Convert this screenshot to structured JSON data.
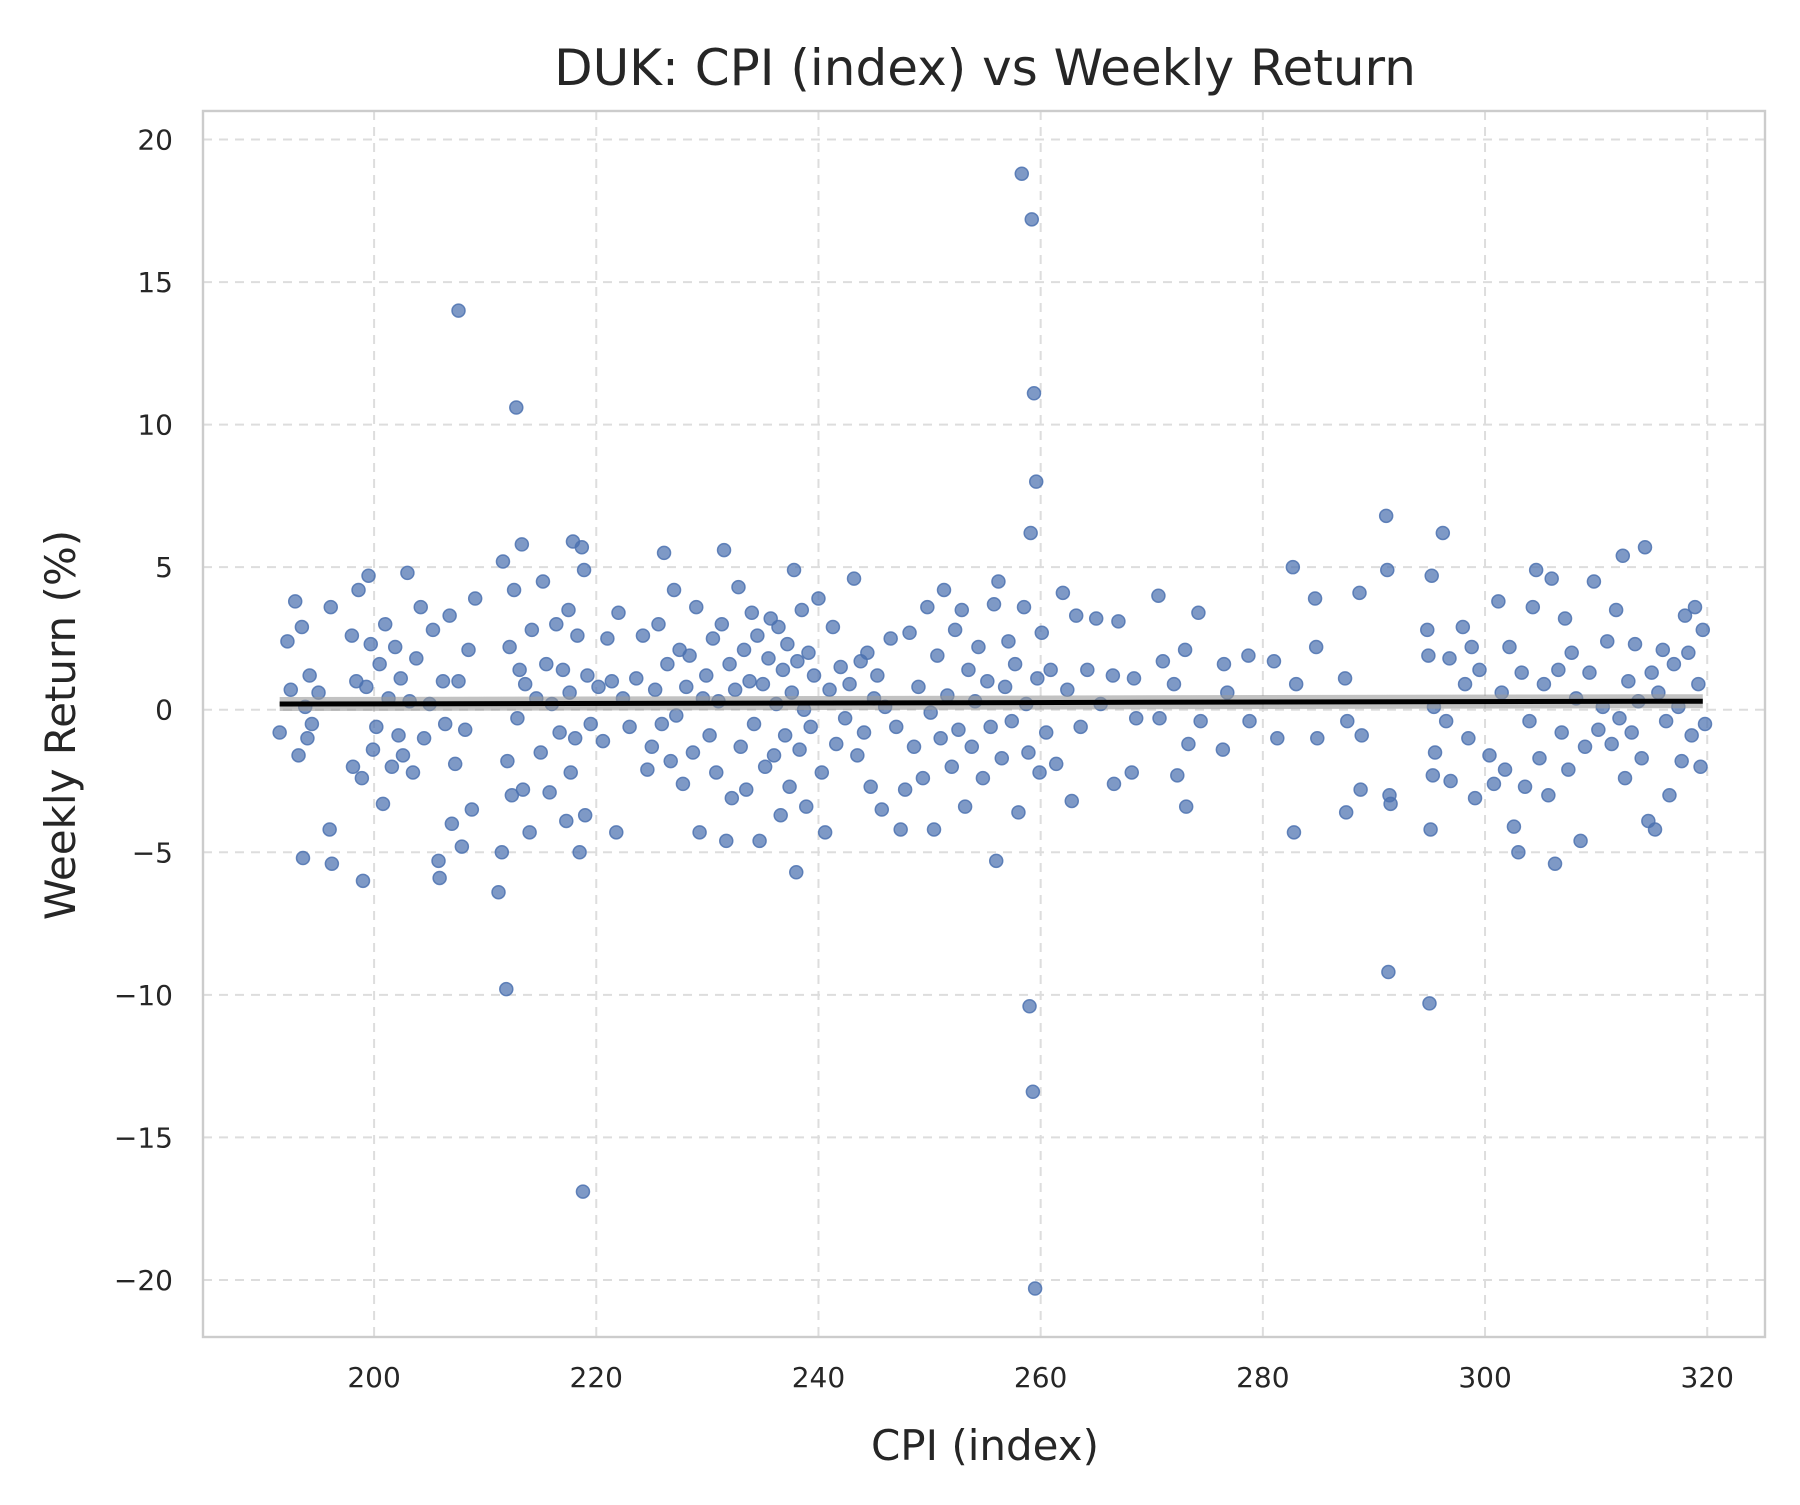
{
  "chart_data": {
    "type": "scatter",
    "title": "DUK: CPI (index) vs Weekly Return",
    "xlabel": "CPI (index)",
    "ylabel": "Weekly Return (%)",
    "xlim": [
      184.6,
      325.2
    ],
    "ylim": [
      -22.0,
      21.0
    ],
    "x_ticks": [
      200,
      220,
      240,
      260,
      280,
      300,
      320
    ],
    "y_ticks": [
      -20,
      -15,
      -10,
      -5,
      0,
      5,
      10,
      15,
      20
    ],
    "x_tick_labels": [
      "200",
      "220",
      "240",
      "260",
      "280",
      "300",
      "320"
    ],
    "y_tick_labels": [
      "−20",
      "−15",
      "−10",
      "−5",
      "0",
      "5",
      "10",
      "15",
      "20"
    ],
    "grid": true,
    "colors": {
      "points": "#4c72b0",
      "trend": "#000000",
      "grid": "#dddddd",
      "frame": "#cccccc"
    },
    "trend_line": {
      "x": [
        191.5,
        319.6
      ],
      "y": [
        0.2,
        0.3
      ]
    },
    "points": [
      [
        191.5,
        -0.8
      ],
      [
        192.2,
        2.4
      ],
      [
        192.5,
        0.7
      ],
      [
        192.9,
        3.8
      ],
      [
        193.2,
        -1.6
      ],
      [
        193.5,
        2.9
      ],
      [
        193.8,
        0.1
      ],
      [
        194.0,
        -1.0
      ],
      [
        194.2,
        1.2
      ],
      [
        194.4,
        -0.5
      ],
      [
        195.0,
        0.6
      ],
      [
        196.0,
        -4.2
      ],
      [
        196.1,
        3.6
      ],
      [
        193.6,
        -5.2
      ],
      [
        196.2,
        -5.4
      ],
      [
        198.0,
        2.6
      ],
      [
        198.1,
        -2.0
      ],
      [
        198.4,
        1.0
      ],
      [
        198.6,
        4.2
      ],
      [
        198.9,
        -2.4
      ],
      [
        199.0,
        -6.0
      ],
      [
        199.3,
        0.8
      ],
      [
        199.5,
        4.7
      ],
      [
        199.7,
        2.3
      ],
      [
        199.9,
        -1.4
      ],
      [
        200.2,
        -0.6
      ],
      [
        200.5,
        1.6
      ],
      [
        200.8,
        -3.3
      ],
      [
        201.0,
        3.0
      ],
      [
        201.3,
        0.4
      ],
      [
        201.6,
        -2.0
      ],
      [
        201.9,
        2.2
      ],
      [
        202.2,
        -0.9
      ],
      [
        202.4,
        1.1
      ],
      [
        202.6,
        -1.6
      ],
      [
        203.0,
        4.8
      ],
      [
        203.2,
        0.3
      ],
      [
        203.5,
        -2.2
      ],
      [
        203.8,
        1.8
      ],
      [
        204.2,
        3.6
      ],
      [
        204.5,
        -1.0
      ],
      [
        205.0,
        0.2
      ],
      [
        205.3,
        2.8
      ],
      [
        205.8,
        -5.3
      ],
      [
        205.9,
        -5.9
      ],
      [
        206.2,
        1.0
      ],
      [
        206.4,
        -0.5
      ],
      [
        206.8,
        3.3
      ],
      [
        207.0,
        -4.0
      ],
      [
        207.3,
        -1.9
      ],
      [
        207.6,
        1.0
      ],
      [
        207.9,
        -4.8
      ],
      [
        208.2,
        -0.7
      ],
      [
        208.5,
        2.1
      ],
      [
        208.8,
        -3.5
      ],
      [
        209.1,
        3.9
      ],
      [
        207.6,
        14.0
      ],
      [
        211.2,
        -6.4
      ],
      [
        211.5,
        -5.0
      ],
      [
        211.9,
        -9.8
      ],
      [
        211.6,
        5.2
      ],
      [
        212.0,
        -1.8
      ],
      [
        212.2,
        2.2
      ],
      [
        212.4,
        -3.0
      ],
      [
        212.6,
        4.2
      ],
      [
        212.8,
        10.6
      ],
      [
        212.9,
        -0.3
      ],
      [
        213.1,
        1.4
      ],
      [
        213.3,
        5.8
      ],
      [
        213.4,
        -2.8
      ],
      [
        213.6,
        0.9
      ],
      [
        214.0,
        -4.3
      ],
      [
        214.2,
        2.8
      ],
      [
        214.6,
        0.4
      ],
      [
        215.0,
        -1.5
      ],
      [
        215.2,
        4.5
      ],
      [
        215.5,
        1.6
      ],
      [
        215.8,
        -2.9
      ],
      [
        216.0,
        0.2
      ],
      [
        216.4,
        3.0
      ],
      [
        216.7,
        -0.8
      ],
      [
        217.0,
        1.4
      ],
      [
        217.3,
        -3.9
      ],
      [
        217.5,
        3.5
      ],
      [
        217.6,
        0.6
      ],
      [
        217.7,
        -2.2
      ],
      [
        217.9,
        5.9
      ],
      [
        218.1,
        -1.0
      ],
      [
        218.3,
        2.6
      ],
      [
        218.5,
        -5.0
      ],
      [
        218.7,
        5.7
      ],
      [
        218.9,
        4.9
      ],
      [
        219.0,
        -3.7
      ],
      [
        218.8,
        -16.9
      ],
      [
        219.2,
        1.2
      ],
      [
        219.5,
        -0.5
      ],
      [
        220.2,
        0.8
      ],
      [
        220.6,
        -1.1
      ],
      [
        221.0,
        2.5
      ],
      [
        221.4,
        1.0
      ],
      [
        221.8,
        -4.3
      ],
      [
        222.0,
        3.4
      ],
      [
        222.4,
        0.4
      ],
      [
        223.0,
        -0.6
      ],
      [
        223.6,
        1.1
      ],
      [
        224.2,
        2.6
      ],
      [
        224.6,
        -2.1
      ],
      [
        225.0,
        -1.3
      ],
      [
        225.3,
        0.7
      ],
      [
        225.6,
        3.0
      ],
      [
        225.9,
        -0.5
      ],
      [
        226.1,
        5.5
      ],
      [
        226.4,
        1.6
      ],
      [
        226.7,
        -1.8
      ],
      [
        227.0,
        4.2
      ],
      [
        227.2,
        -0.2
      ],
      [
        227.5,
        2.1
      ],
      [
        227.8,
        -2.6
      ],
      [
        228.1,
        0.8
      ],
      [
        228.4,
        1.9
      ],
      [
        228.7,
        -1.5
      ],
      [
        229.0,
        3.6
      ],
      [
        229.3,
        -4.3
      ],
      [
        229.6,
        0.4
      ],
      [
        229.9,
        1.2
      ],
      [
        230.2,
        -0.9
      ],
      [
        230.5,
        2.5
      ],
      [
        230.8,
        -2.2
      ],
      [
        231.0,
        0.3
      ],
      [
        231.3,
        3.0
      ],
      [
        231.5,
        5.6
      ],
      [
        231.7,
        -4.6
      ],
      [
        232.0,
        1.6
      ],
      [
        232.2,
        -3.1
      ],
      [
        232.5,
        0.7
      ],
      [
        232.8,
        4.3
      ],
      [
        233.0,
        -1.3
      ],
      [
        233.3,
        2.1
      ],
      [
        233.5,
        -2.8
      ],
      [
        233.8,
        1.0
      ],
      [
        234.0,
        3.4
      ],
      [
        234.2,
        -0.5
      ],
      [
        234.5,
        2.6
      ],
      [
        234.7,
        -4.6
      ],
      [
        235.0,
        0.9
      ],
      [
        235.2,
        -2.0
      ],
      [
        235.5,
        1.8
      ],
      [
        235.7,
        3.2
      ],
      [
        236.0,
        -1.6
      ],
      [
        236.2,
        0.2
      ],
      [
        236.4,
        2.9
      ],
      [
        236.6,
        -3.7
      ],
      [
        236.8,
        1.4
      ],
      [
        237.0,
        -0.9
      ],
      [
        237.2,
        2.3
      ],
      [
        237.4,
        -2.7
      ],
      [
        237.6,
        0.6
      ],
      [
        237.8,
        4.9
      ],
      [
        238.0,
        -5.7
      ],
      [
        238.1,
        1.7
      ],
      [
        238.3,
        -1.4
      ],
      [
        238.5,
        3.5
      ],
      [
        238.7,
        0.0
      ],
      [
        238.9,
        -3.4
      ],
      [
        239.1,
        2.0
      ],
      [
        239.3,
        -0.6
      ],
      [
        239.6,
        1.2
      ],
      [
        240.0,
        3.9
      ],
      [
        240.3,
        -2.2
      ],
      [
        240.6,
        -4.3
      ],
      [
        241.0,
        0.7
      ],
      [
        241.3,
        2.9
      ],
      [
        241.6,
        -1.2
      ],
      [
        242.0,
        1.5
      ],
      [
        242.4,
        -0.3
      ],
      [
        242.8,
        0.9
      ],
      [
        243.2,
        4.6
      ],
      [
        243.5,
        -1.6
      ],
      [
        243.8,
        1.7
      ],
      [
        244.1,
        -0.8
      ],
      [
        244.4,
        2.0
      ],
      [
        244.7,
        -2.7
      ],
      [
        245.0,
        0.4
      ],
      [
        245.3,
        1.2
      ],
      [
        245.7,
        -3.5
      ],
      [
        246.0,
        0.1
      ],
      [
        246.5,
        2.5
      ],
      [
        247.0,
        -0.6
      ],
      [
        247.4,
        -4.2
      ],
      [
        247.8,
        -2.8
      ],
      [
        248.2,
        2.7
      ],
      [
        248.6,
        -1.3
      ],
      [
        249.0,
        0.8
      ],
      [
        249.4,
        -2.4
      ],
      [
        249.8,
        3.6
      ],
      [
        250.1,
        -0.1
      ],
      [
        250.4,
        -4.2
      ],
      [
        250.7,
        1.9
      ],
      [
        251.0,
        -1.0
      ],
      [
        251.3,
        4.2
      ],
      [
        251.6,
        0.5
      ],
      [
        252.0,
        -2.0
      ],
      [
        252.3,
        2.8
      ],
      [
        252.6,
        -0.7
      ],
      [
        252.9,
        3.5
      ],
      [
        253.2,
        -3.4
      ],
      [
        253.5,
        1.4
      ],
      [
        253.8,
        -1.3
      ],
      [
        254.1,
        0.3
      ],
      [
        254.4,
        2.2
      ],
      [
        254.8,
        -2.4
      ],
      [
        255.2,
        1.0
      ],
      [
        255.5,
        -0.6
      ],
      [
        255.8,
        3.7
      ],
      [
        256.0,
        -5.3
      ],
      [
        256.2,
        4.5
      ],
      [
        256.5,
        -1.7
      ],
      [
        256.8,
        0.8
      ],
      [
        257.1,
        2.4
      ],
      [
        257.4,
        -0.4
      ],
      [
        257.7,
        1.6
      ],
      [
        258.0,
        -3.6
      ],
      [
        258.3,
        18.8
      ],
      [
        258.5,
        3.6
      ],
      [
        258.7,
        0.2
      ],
      [
        258.9,
        -1.5
      ],
      [
        259.0,
        -10.4
      ],
      [
        259.1,
        6.2
      ],
      [
        259.2,
        17.2
      ],
      [
        259.3,
        -13.4
      ],
      [
        259.4,
        11.1
      ],
      [
        259.5,
        -20.3
      ],
      [
        259.6,
        8.0
      ],
      [
        259.7,
        1.1
      ],
      [
        259.9,
        -2.2
      ],
      [
        260.1,
        2.7
      ],
      [
        260.5,
        -0.8
      ],
      [
        260.9,
        1.4
      ],
      [
        261.4,
        -1.9
      ],
      [
        262.0,
        4.1
      ],
      [
        262.4,
        0.7
      ],
      [
        262.8,
        -3.2
      ],
      [
        263.2,
        3.3
      ],
      [
        263.6,
        -0.6
      ],
      [
        264.2,
        1.4
      ],
      [
        265.0,
        3.2
      ],
      [
        265.4,
        0.2
      ],
      [
        266.5,
        1.2
      ],
      [
        266.6,
        -2.6
      ],
      [
        267.0,
        3.1
      ],
      [
        268.2,
        -2.2
      ],
      [
        268.4,
        1.1
      ],
      [
        268.6,
        -0.3
      ],
      [
        270.6,
        4.0
      ],
      [
        270.7,
        -0.3
      ],
      [
        271.0,
        1.7
      ],
      [
        272.0,
        0.9
      ],
      [
        272.3,
        -2.3
      ],
      [
        273.0,
        2.1
      ],
      [
        273.1,
        -3.4
      ],
      [
        273.3,
        -1.2
      ],
      [
        274.2,
        3.4
      ],
      [
        274.4,
        -0.4
      ],
      [
        276.4,
        -1.4
      ],
      [
        276.5,
        1.6
      ],
      [
        276.8,
        0.6
      ],
      [
        278.7,
        1.9
      ],
      [
        278.8,
        -0.4
      ],
      [
        281.0,
        1.7
      ],
      [
        281.3,
        -1.0
      ],
      [
        282.7,
        5.0
      ],
      [
        282.8,
        -4.3
      ],
      [
        283.0,
        0.9
      ],
      [
        284.7,
        3.9
      ],
      [
        284.8,
        2.2
      ],
      [
        284.9,
        -1.0
      ],
      [
        287.4,
        1.1
      ],
      [
        287.5,
        -3.6
      ],
      [
        287.6,
        -0.4
      ],
      [
        288.7,
        4.1
      ],
      [
        288.8,
        -2.8
      ],
      [
        288.9,
        -0.9
      ],
      [
        291.1,
        6.8
      ],
      [
        291.2,
        4.9
      ],
      [
        291.3,
        -9.2
      ],
      [
        291.4,
        -3.0
      ],
      [
        291.5,
        -3.3
      ],
      [
        294.8,
        2.8
      ],
      [
        294.9,
        1.9
      ],
      [
        295.0,
        -10.3
      ],
      [
        295.1,
        -4.2
      ],
      [
        295.2,
        4.7
      ],
      [
        295.3,
        -2.3
      ],
      [
        295.4,
        0.1
      ],
      [
        295.5,
        -1.5
      ],
      [
        296.2,
        6.2
      ],
      [
        296.5,
        -0.4
      ],
      [
        296.8,
        1.8
      ],
      [
        296.9,
        -2.5
      ],
      [
        298.0,
        2.9
      ],
      [
        298.2,
        0.9
      ],
      [
        298.5,
        -1.0
      ],
      [
        298.8,
        2.2
      ],
      [
        299.1,
        -3.1
      ],
      [
        299.5,
        1.4
      ],
      [
        300.4,
        -1.6
      ],
      [
        300.8,
        -2.6
      ],
      [
        301.2,
        3.8
      ],
      [
        301.5,
        0.6
      ],
      [
        301.8,
        -2.1
      ],
      [
        302.2,
        2.2
      ],
      [
        302.6,
        -4.1
      ],
      [
        303.0,
        -5.0
      ],
      [
        303.3,
        1.3
      ],
      [
        303.6,
        -2.7
      ],
      [
        304.0,
        -0.4
      ],
      [
        304.3,
        3.6
      ],
      [
        304.6,
        4.9
      ],
      [
        304.9,
        -1.7
      ],
      [
        305.3,
        0.9
      ],
      [
        305.7,
        -3.0
      ],
      [
        306.0,
        4.6
      ],
      [
        306.3,
        -5.4
      ],
      [
        306.6,
        1.4
      ],
      [
        306.9,
        -0.8
      ],
      [
        307.2,
        3.2
      ],
      [
        307.5,
        -2.1
      ],
      [
        307.8,
        2.0
      ],
      [
        308.2,
        0.4
      ],
      [
        308.6,
        -4.6
      ],
      [
        309.0,
        -1.3
      ],
      [
        309.4,
        1.3
      ],
      [
        309.8,
        4.5
      ],
      [
        310.2,
        -0.7
      ],
      [
        310.6,
        0.1
      ],
      [
        311.0,
        2.4
      ],
      [
        311.4,
        -1.2
      ],
      [
        311.8,
        3.5
      ],
      [
        312.1,
        -0.3
      ],
      [
        312.4,
        5.4
      ],
      [
        312.6,
        -2.4
      ],
      [
        312.9,
        1.0
      ],
      [
        313.2,
        -0.8
      ],
      [
        313.5,
        2.3
      ],
      [
        313.8,
        0.3
      ],
      [
        314.1,
        -1.7
      ],
      [
        314.4,
        5.7
      ],
      [
        314.7,
        -3.9
      ],
      [
        315.0,
        1.3
      ],
      [
        315.3,
        -4.2
      ],
      [
        315.6,
        0.6
      ],
      [
        316.0,
        2.1
      ],
      [
        316.3,
        -0.4
      ],
      [
        316.6,
        -3.0
      ],
      [
        317.0,
        1.6
      ],
      [
        317.4,
        0.1
      ],
      [
        317.7,
        -1.8
      ],
      [
        318.0,
        3.3
      ],
      [
        318.3,
        2.0
      ],
      [
        318.6,
        -0.9
      ],
      [
        318.9,
        3.6
      ],
      [
        319.2,
        0.9
      ],
      [
        319.4,
        -2.0
      ],
      [
        319.6,
        2.8
      ],
      [
        319.8,
        -0.5
      ]
    ]
  }
}
